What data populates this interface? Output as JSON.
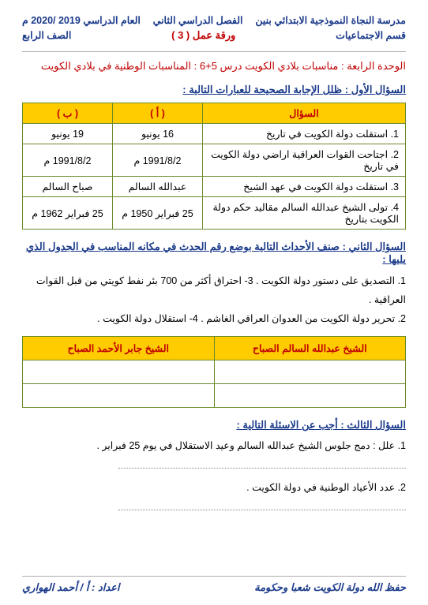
{
  "header": {
    "row1": {
      "right": "مدرسة النجاة النموذجية الابتدائي بنين",
      "center": "الفصل الدراسي الثاني",
      "left": "العام الدراسي 2019 /2020 م"
    },
    "row2": {
      "right": "قسم الاجتماعيات",
      "center": "ورقة عمل ( 3 )",
      "left": "الصف الرابع"
    }
  },
  "unit_line": "الوحدة الرابعة : مناسبات بلادي الكويت  درس 5+6 : المناسبات الوطنية في بلادي الكويت",
  "q1": {
    "title": "السؤال الأول : ظلل الإجابة الصحيحة للعبارات التالية  :",
    "head": {
      "q": "السؤال",
      "a": "( أ )",
      "b": "( ب )"
    },
    "rows": [
      {
        "n": "1.",
        "q": "استقلت دولة الكويت في تاريخ",
        "a": "16 يونيو",
        "b": "19 يونيو"
      },
      {
        "n": "2.",
        "q": "اجتاحت القوات العراقية اراضي دولة الكويت في تاريخ",
        "a": "1991/8/2 م",
        "b": "1991/8/2 م"
      },
      {
        "n": "3.",
        "q": "استقلت دولة الكويت في عهد الشيخ",
        "a": "عبدالله السالم",
        "b": "صباح السالم"
      },
      {
        "n": "4.",
        "q": "تولى الشيخ عبدالله السالم مقاليد حكم دولة الكويت بتاريخ",
        "a": "25 فبراير 1950 م",
        "b": "25 فبراير 1962 م"
      }
    ]
  },
  "q2": {
    "title": "السؤال الثاني : صنف الأحداث التالية بوضع رقم الحدث في مكانه المناسب في الجدول الذي يليها  :",
    "events_line1": "1.   التصديق على دستور دولة الكويت .   3- احتراق أكثر من 700 بئر نفط كويتي من قبل القوات العراقية .",
    "events_line2": "2.   تحرير دولة الكويت من العدوان العراقي الغاشم .        4- استقلال دولة الكويت .",
    "head": {
      "right": "الشيخ عبدالله السالم الصباح",
      "left": "الشيخ جابر الأحمد الصباح"
    }
  },
  "q3": {
    "title": "السؤال الثالث : أجب عن الاسئلة التالية  :",
    "line1": "1.   علل : دمج جلوس الشيخ عبدالله السالم وعيد الاستقلال في يوم 25 فبراير .",
    "line2": "2.   عدد الأعياد الوطنية في دولة الكويت ."
  },
  "footer": {
    "right": "حفظ الله دولة الكويت شعبا وحكومة",
    "left": "اعداد : أ / أحمد الهواري"
  }
}
